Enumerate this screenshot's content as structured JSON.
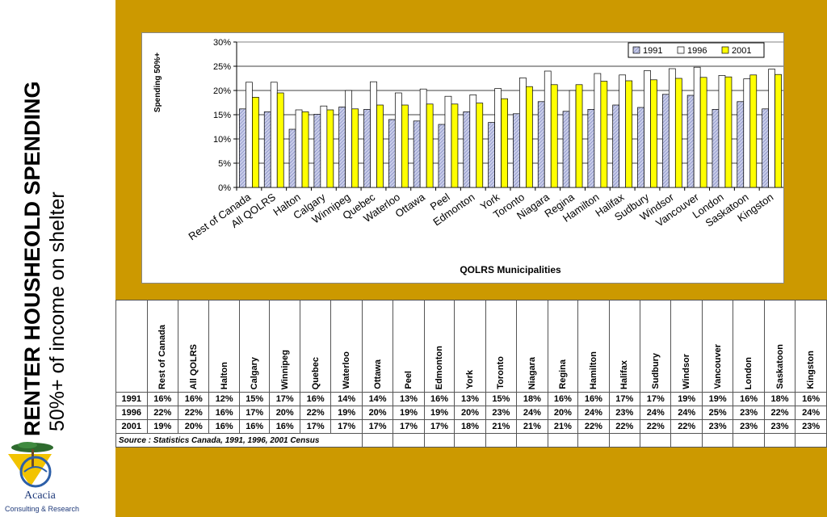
{
  "title": {
    "main": "RENTER HOUSHEOLD SPENDING",
    "sub": "50%+ of income on shelter"
  },
  "logo": {
    "name": "Acacia",
    "tagline": "Consulting & Research"
  },
  "colors": {
    "background": "#cc9900",
    "series_1991": "#c8cce8",
    "series_1996": "#ffffff",
    "series_2001": "#ffff00"
  },
  "chart_data": {
    "type": "bar",
    "xlabel": "QOLRS Municipalities",
    "ylabel": "Spending 50%+",
    "ylim": [
      0,
      30
    ],
    "yticks": [
      "0%",
      "5%",
      "10%",
      "15%",
      "20%",
      "25%",
      "30%"
    ],
    "grid": true,
    "legend": "top-right",
    "categories": [
      "Rest of Canada",
      "All QOLRS",
      "Halton",
      "Calgary",
      "Winnipeg",
      "Quebec",
      "Waterloo",
      "Ottawa",
      "Peel",
      "Edmonton",
      "York",
      "Toronto",
      "Niagara",
      "Regina",
      "Hamilton",
      "Halifax",
      "Sudbury",
      "Windsor",
      "Vancouver",
      "London",
      "Saskatoon",
      "Kingston"
    ],
    "series": [
      {
        "name": "1991",
        "values": [
          16.2,
          15.6,
          12.0,
          15.1,
          16.6,
          16.1,
          14.0,
          13.7,
          13.0,
          15.6,
          13.4,
          15.2,
          17.7,
          15.7,
          16.1,
          17.0,
          16.5,
          19.2,
          19.0,
          16.1,
          17.7,
          16.2
        ]
      },
      {
        "name": "1996",
        "values": [
          21.7,
          21.7,
          16.0,
          16.8,
          20.0,
          21.8,
          19.5,
          20.3,
          18.8,
          19.1,
          20.4,
          22.6,
          24.0,
          20.0,
          23.5,
          23.2,
          24.1,
          24.5,
          24.8,
          23.1,
          22.4,
          24.4
        ]
      },
      {
        "name": "2001",
        "values": [
          18.6,
          19.5,
          15.6,
          16.0,
          16.2,
          17.0,
          17.0,
          17.2,
          17.2,
          17.4,
          18.3,
          20.8,
          21.2,
          21.2,
          21.9,
          22.0,
          22.2,
          22.5,
          22.7,
          22.8,
          23.2,
          23.3
        ]
      }
    ]
  },
  "table": {
    "rows": [
      {
        "year": "1991",
        "cells": [
          "16%",
          "16%",
          "12%",
          "15%",
          "17%",
          "16%",
          "14%",
          "14%",
          "13%",
          "16%",
          "13%",
          "15%",
          "18%",
          "16%",
          "16%",
          "17%",
          "17%",
          "19%",
          "19%",
          "16%",
          "18%",
          "16%"
        ]
      },
      {
        "year": "1996",
        "cells": [
          "22%",
          "22%",
          "16%",
          "17%",
          "20%",
          "22%",
          "19%",
          "20%",
          "19%",
          "19%",
          "20%",
          "23%",
          "24%",
          "20%",
          "24%",
          "23%",
          "24%",
          "24%",
          "25%",
          "23%",
          "22%",
          "24%"
        ]
      },
      {
        "year": "2001",
        "cells": [
          "19%",
          "20%",
          "16%",
          "16%",
          "16%",
          "17%",
          "17%",
          "17%",
          "17%",
          "17%",
          "18%",
          "21%",
          "21%",
          "21%",
          "22%",
          "22%",
          "22%",
          "22%",
          "23%",
          "23%",
          "23%",
          "23%"
        ]
      }
    ],
    "source": "Source : Statistics Canada, 1991, 1996, 2001 Census"
  }
}
